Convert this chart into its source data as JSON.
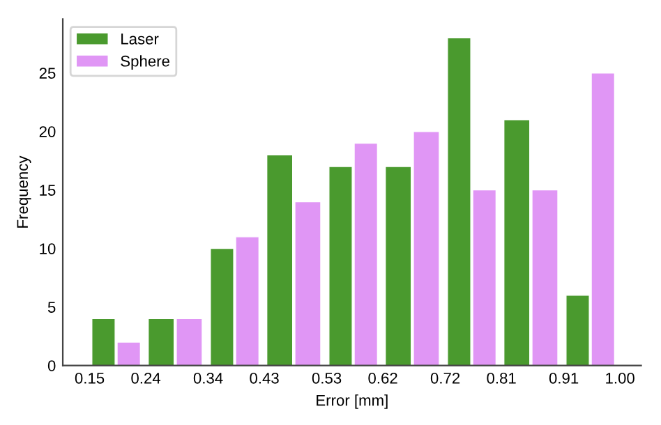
{
  "chart_data": {
    "type": "histogram",
    "xlabel": "Error [mm]",
    "ylabel": "Frequency",
    "bins": [
      0.15,
      0.24,
      0.34,
      0.43,
      0.53,
      0.62,
      0.72,
      0.81,
      0.91,
      1.0
    ],
    "series": [
      {
        "name": "Laser",
        "color": "#4a9a2e",
        "values": [
          4,
          4,
          10,
          18,
          17,
          17,
          28,
          21,
          6
        ]
      },
      {
        "name": "Sphere",
        "color": "#e096f5",
        "values": [
          2,
          4,
          11,
          14,
          19,
          20,
          15,
          15,
          25
        ]
      }
    ],
    "xlim": [
      0.107,
      1.034
    ],
    "xticks": [
      {
        "value": 0.15,
        "label": "0.15"
      },
      {
        "value": 0.24,
        "label": "0.24"
      },
      {
        "value": 0.34,
        "label": "0.34"
      },
      {
        "value": 0.43,
        "label": "0.43"
      },
      {
        "value": 0.53,
        "label": "0.53"
      },
      {
        "value": 0.62,
        "label": "0.62"
      },
      {
        "value": 0.72,
        "label": "0.72"
      },
      {
        "value": 0.81,
        "label": "0.81"
      },
      {
        "value": 0.91,
        "label": "0.91"
      },
      {
        "value": 1.0,
        "label": "1.00"
      }
    ],
    "ylim": [
      0,
      29.6
    ],
    "yticks": [
      0,
      5,
      10,
      15,
      20,
      25
    ],
    "grid": false,
    "legend": "top left"
  }
}
